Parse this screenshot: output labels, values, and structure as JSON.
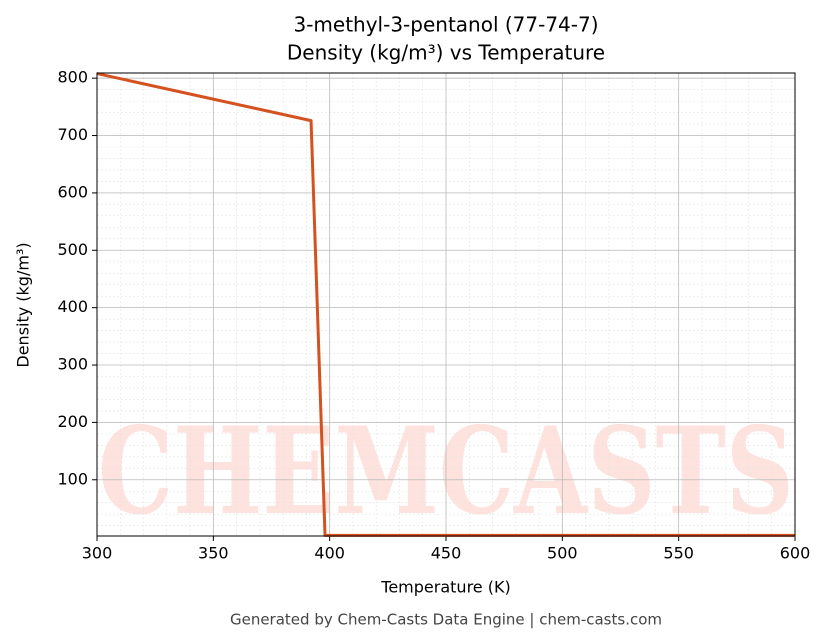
{
  "chart_data": {
    "type": "line",
    "title": "3-methyl-3-pentanol (77-74-7)",
    "subtitle": "Density (kg/m³) vs Temperature",
    "x_label": "Temperature (K)",
    "y_label": "Density (kg/m³)",
    "footer": "Generated by Chem-Casts Data Engine | chem-casts.com",
    "watermark": "CHEMCASTS",
    "x": [
      300,
      392,
      398,
      600
    ],
    "series": [
      {
        "name": "Density",
        "color": "#d4521f",
        "values": [
          808,
          726,
          3,
          3
        ]
      }
    ],
    "xlim": [
      300,
      600
    ],
    "xticks": [
      300,
      350,
      400,
      450,
      500,
      550,
      600
    ],
    "ylim": [
      2,
      809
    ],
    "yticks": [
      100,
      200,
      300,
      400,
      500,
      600,
      700,
      800
    ],
    "grid": true,
    "minor_grid": true
  }
}
